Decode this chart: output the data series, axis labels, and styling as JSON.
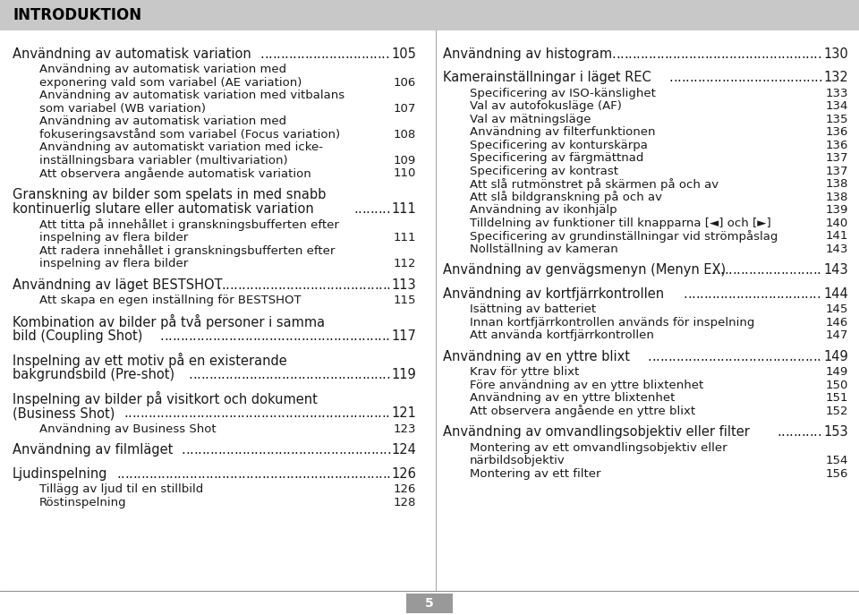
{
  "title": "INTRODUKTION",
  "bg_color": "#ffffff",
  "header_bg": "#c8c8c8",
  "footer_bg": "#999999",
  "footer_text": "5",
  "left_entries": [
    {
      "level": 1,
      "text": "Användning av automatisk variation",
      "dots": true,
      "page": "105"
    },
    {
      "level": 2,
      "text": "Användning av automatisk variation med\nexponering vald som variabel (AE variation)",
      "dots": false,
      "page": "106"
    },
    {
      "level": 2,
      "text": "Användning av automatisk variation med vitbalans\nsom variabel (WB variation)",
      "dots": false,
      "page": "107"
    },
    {
      "level": 2,
      "text": "Användning av automatisk variation med\nfokuseringsavstånd som variabel (Focus variation)",
      "dots": false,
      "page": "108"
    },
    {
      "level": 2,
      "text": "Användning av automatiskt variation med icke-\ninställningsbara variabler (multivariation)",
      "dots": false,
      "page": "109"
    },
    {
      "level": 2,
      "text": "Att observera angående automatisk variation",
      "dots": false,
      "page": "110"
    },
    {
      "level": 1,
      "text": "Granskning av bilder som spelats in med snabb\nkontinuerlig slutare eller automatisk variation",
      "dots": true,
      "page": "111"
    },
    {
      "level": 2,
      "text": "Att titta på innehållet i granskningsbufferten efter\ninspelning av flera bilder",
      "dots": false,
      "page": "111"
    },
    {
      "level": 2,
      "text": "Att radera innehållet i granskningsbufferten efter\ninspelning av flera bilder",
      "dots": false,
      "page": "112"
    },
    {
      "level": 1,
      "text": "Användning av läget BESTSHOT",
      "dots": true,
      "page": "113"
    },
    {
      "level": 2,
      "text": "Att skapa en egen inställning för BESTSHOT",
      "dots": false,
      "page": "115"
    },
    {
      "level": 1,
      "text": "Kombination av bilder på två personer i samma\nbild (Coupling Shot)",
      "dots": true,
      "page": "117"
    },
    {
      "level": 1,
      "text": "Inspelning av ett motiv på en existerande\nbakgrundsbild (Pre-shot)",
      "dots": true,
      "page": "119"
    },
    {
      "level": 1,
      "text": "Inspelning av bilder på visitkort och dokument\n(Business Shot)",
      "dots": true,
      "page": "121"
    },
    {
      "level": 2,
      "text": "Användning av Business Shot",
      "dots": false,
      "page": "123"
    },
    {
      "level": 1,
      "text": "Användning av filmläget",
      "dots": true,
      "page": "124"
    },
    {
      "level": 1,
      "text": "Ljudinspelning",
      "dots": true,
      "page": "126"
    },
    {
      "level": 2,
      "text": "Tillägg av ljud til en stillbild",
      "dots": false,
      "page": "126"
    },
    {
      "level": 2,
      "text": "Röstinspelning",
      "dots": false,
      "page": "128"
    }
  ],
  "right_entries": [
    {
      "level": 1,
      "text": "Användning av histogram",
      "dots": true,
      "page": "130"
    },
    {
      "level": 1,
      "text": "Kamerainställningar i läget REC",
      "dots": true,
      "page": "132"
    },
    {
      "level": 2,
      "text": "Specificering av ISO-känslighet",
      "dots": false,
      "page": "133"
    },
    {
      "level": 2,
      "text": "Val av autofokusläge (AF)",
      "dots": false,
      "page": "134"
    },
    {
      "level": 2,
      "text": "Val av mätningsläge",
      "dots": false,
      "page": "135"
    },
    {
      "level": 2,
      "text": "Användning av filterfunktionen",
      "dots": false,
      "page": "136"
    },
    {
      "level": 2,
      "text": "Specificering av konturskärpa",
      "dots": false,
      "page": "136"
    },
    {
      "level": 2,
      "text": "Specificering av färgmättnad",
      "dots": false,
      "page": "137"
    },
    {
      "level": 2,
      "text": "Specificering av kontrast",
      "dots": false,
      "page": "137"
    },
    {
      "level": 2,
      "text": "Att slå rutmönstret på skärmen på och av",
      "dots": false,
      "page": "138"
    },
    {
      "level": 2,
      "text": "Att slå bildgranskning på och av",
      "dots": false,
      "page": "138"
    },
    {
      "level": 2,
      "text": "Användning av ikonhjälp",
      "dots": false,
      "page": "139"
    },
    {
      "level": 2,
      "text": "Tilldelning av funktioner till knapparna [◄] och [►]",
      "dots": false,
      "page": "140"
    },
    {
      "level": 2,
      "text": "Specificering av grundinställningar vid strömpåslag",
      "dots": false,
      "page": "141"
    },
    {
      "level": 2,
      "text": "Nollställning av kameran",
      "dots": false,
      "page": "143"
    },
    {
      "level": 1,
      "text": "Användning av genvägsmenyn (Menyn EX)",
      "dots": true,
      "page": "143"
    },
    {
      "level": 1,
      "text": "Användning av kortfjärrkontrollen",
      "dots": true,
      "page": "144"
    },
    {
      "level": 2,
      "text": "Isättning av batteriet",
      "dots": false,
      "page": "145"
    },
    {
      "level": 2,
      "text": "Innan kortfjärrkontrollen används för inspelning",
      "dots": false,
      "page": "146"
    },
    {
      "level": 2,
      "text": "Att använda kortfjärrkontrollen",
      "dots": false,
      "page": "147"
    },
    {
      "level": 1,
      "text": "Användning av en yttre blixt",
      "dots": true,
      "page": "149"
    },
    {
      "level": 2,
      "text": "Krav för yttre blixt",
      "dots": false,
      "page": "149"
    },
    {
      "level": 2,
      "text": "Före användning av en yttre blixtenhet",
      "dots": false,
      "page": "150"
    },
    {
      "level": 2,
      "text": "Användning av en yttre blixtenhet",
      "dots": false,
      "page": "151"
    },
    {
      "level": 2,
      "text": "Att observera angående en yttre blixt",
      "dots": false,
      "page": "152"
    },
    {
      "level": 1,
      "text": "Användning av omvandlingsobjektiv eller filter",
      "dots": true,
      "page": "153"
    },
    {
      "level": 2,
      "text": "Montering av ett omvandlingsobjektiv eller\nnärbildsobjektiv",
      "dots": false,
      "page": "154"
    },
    {
      "level": 2,
      "text": "Montering av ett filter",
      "dots": false,
      "page": "156"
    }
  ]
}
